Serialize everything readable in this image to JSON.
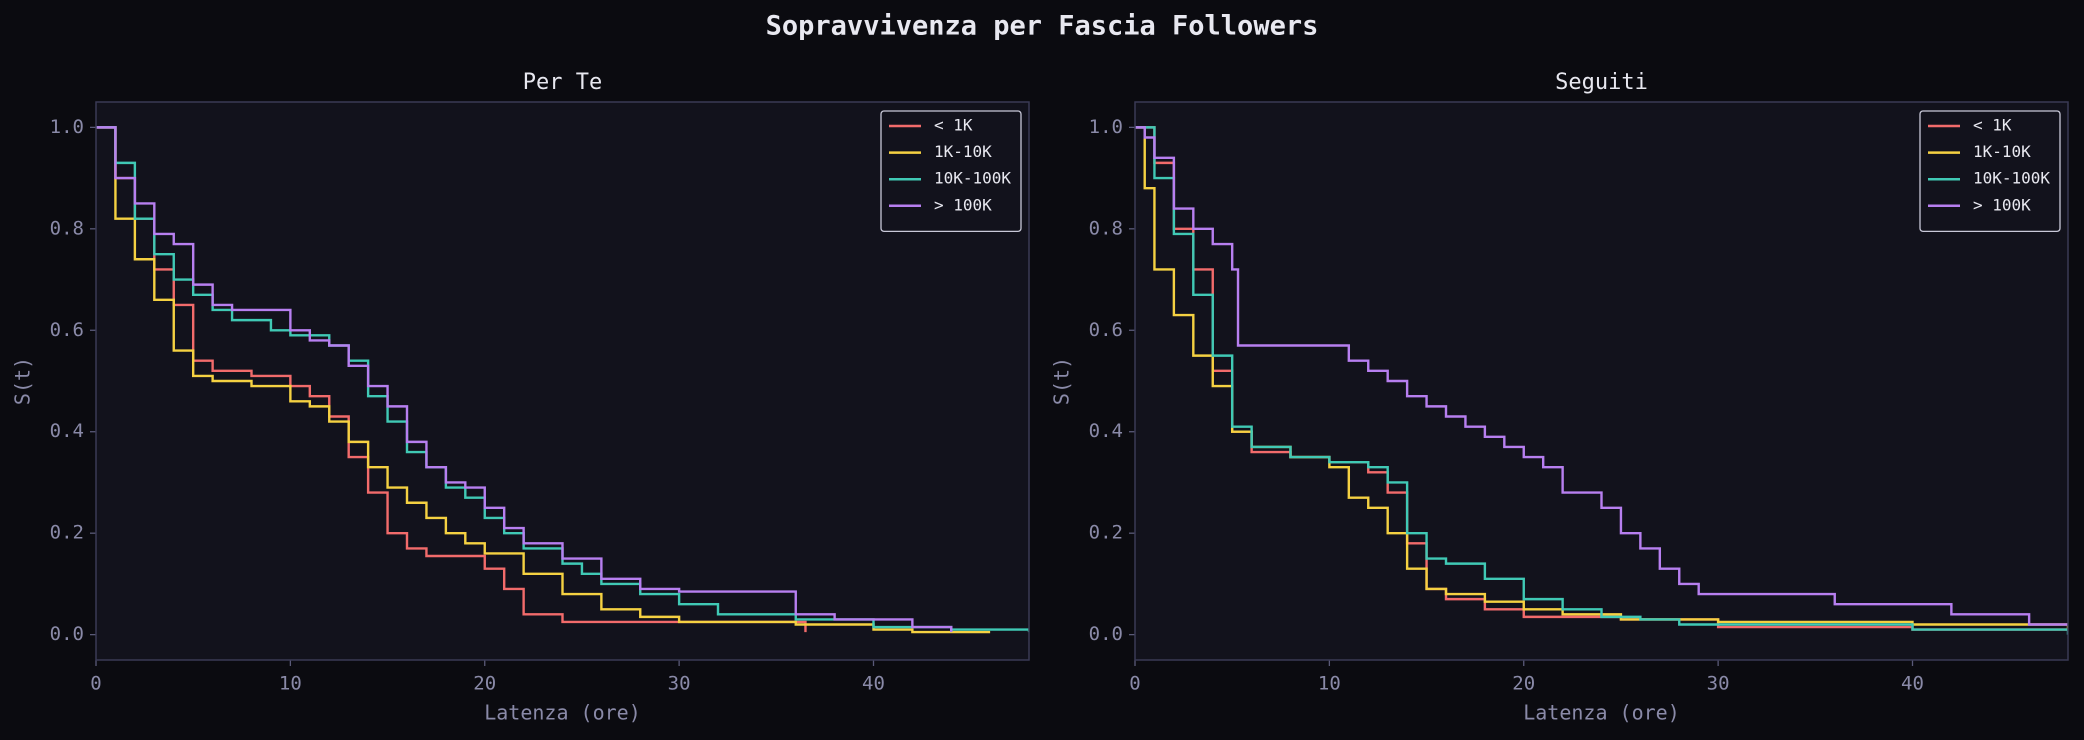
{
  "title": "Sopravvivenza per Fascia Followers",
  "chart_data": [
    {
      "type": "line",
      "drawstyle": "steps-post",
      "title": "Per Te",
      "xlabel": "Latenza (ore)",
      "ylabel": "S(t)",
      "xlim": [
        0,
        48
      ],
      "ylim": [
        -0.05,
        1.05
      ],
      "xticks": [
        0,
        10,
        20,
        30,
        40
      ],
      "yticks": [
        {
          "value": 0,
          "label": "0.0"
        },
        0.2,
        0.4,
        0.6,
        0.8,
        {
          "value": 1,
          "label": "1.0"
        }
      ],
      "legend": "upper right",
      "series": [
        {
          "name": "< 1K",
          "color": "#f26b6b",
          "x": [
            0,
            1,
            2,
            3,
            4,
            5,
            6,
            8,
            10,
            11,
            12,
            13,
            14,
            15,
            16,
            17,
            20,
            21,
            22,
            24,
            30,
            36.5
          ],
          "values": [
            1,
            0.9,
            0.82,
            0.72,
            0.65,
            0.54,
            0.52,
            0.51,
            0.49,
            0.47,
            0.43,
            0.35,
            0.28,
            0.2,
            0.17,
            0.155,
            0.13,
            0.09,
            0.04,
            0.025,
            0.025,
            0.005
          ]
        },
        {
          "name": "1K-10K",
          "color": "#f5d142",
          "x": [
            0,
            1,
            2,
            3,
            4,
            5,
            6,
            8,
            10,
            11,
            12,
            13,
            14,
            15,
            16,
            17,
            18,
            19,
            20,
            22,
            24,
            26,
            28,
            30,
            36,
            40,
            42,
            46
          ],
          "values": [
            1,
            0.82,
            0.74,
            0.66,
            0.56,
            0.51,
            0.5,
            0.49,
            0.46,
            0.45,
            0.42,
            0.38,
            0.33,
            0.29,
            0.26,
            0.23,
            0.2,
            0.18,
            0.16,
            0.12,
            0.08,
            0.05,
            0.035,
            0.025,
            0.02,
            0.01,
            0.005,
            0.005
          ]
        },
        {
          "name": "10K-100K",
          "color": "#40c9b5",
          "x": [
            0,
            1,
            2,
            3,
            4,
            5,
            6,
            7,
            9,
            10,
            12,
            13,
            14,
            15,
            16,
            17,
            18,
            19,
            20,
            21,
            22,
            24,
            25,
            26,
            28,
            30,
            32,
            36,
            40,
            44,
            48
          ],
          "values": [
            1,
            0.93,
            0.82,
            0.75,
            0.7,
            0.67,
            0.64,
            0.62,
            0.6,
            0.59,
            0.57,
            0.54,
            0.47,
            0.42,
            0.36,
            0.33,
            0.29,
            0.27,
            0.23,
            0.2,
            0.17,
            0.14,
            0.12,
            0.1,
            0.08,
            0.06,
            0.04,
            0.03,
            0.015,
            0.01,
            0.005
          ]
        },
        {
          "name": "> 100K",
          "color": "#b77ff0",
          "x": [
            0,
            1,
            2,
            3,
            4,
            5,
            6,
            7,
            8,
            10,
            11,
            12,
            13,
            14,
            15,
            16,
            17,
            18,
            19,
            20,
            21,
            22,
            24,
            26,
            28,
            30,
            36,
            38,
            42,
            44
          ],
          "values": [
            1,
            0.9,
            0.85,
            0.79,
            0.77,
            0.69,
            0.65,
            0.64,
            0.64,
            0.6,
            0.58,
            0.57,
            0.53,
            0.49,
            0.45,
            0.38,
            0.33,
            0.3,
            0.29,
            0.25,
            0.21,
            0.18,
            0.15,
            0.11,
            0.09,
            0.085,
            0.04,
            0.03,
            0.015,
            0.005
          ]
        }
      ]
    },
    {
      "type": "line",
      "drawstyle": "steps-post",
      "title": "Seguiti",
      "xlabel": "Latenza (ore)",
      "ylabel": "S(t)",
      "xlim": [
        0,
        48
      ],
      "ylim": [
        -0.05,
        1.05
      ],
      "xticks": [
        0,
        10,
        20,
        30,
        40
      ],
      "yticks": [
        {
          "value": 0,
          "label": "0.0"
        },
        0.2,
        0.4,
        0.6,
        0.8,
        {
          "value": 1,
          "label": "1.0"
        }
      ],
      "legend": "upper right",
      "series": [
        {
          "name": "< 1K",
          "color": "#f26b6b",
          "x": [
            0,
            1,
            2,
            3,
            4,
            5,
            6,
            8,
            10,
            12,
            13,
            14,
            15,
            16,
            18,
            20,
            25,
            30,
            40,
            48
          ],
          "values": [
            1,
            0.93,
            0.8,
            0.72,
            0.52,
            0.4,
            0.36,
            0.35,
            0.34,
            0.32,
            0.28,
            0.18,
            0.09,
            0.07,
            0.05,
            0.035,
            0.03,
            0.015,
            0.01,
            0.01
          ]
        },
        {
          "name": "1K-10K",
          "color": "#f5d142",
          "x": [
            0,
            0.5,
            1,
            2,
            3,
            4,
            5,
            6,
            8,
            10,
            11,
            12,
            13,
            14,
            15,
            16,
            18,
            20,
            22,
            25,
            30,
            40,
            48
          ],
          "values": [
            1,
            0.88,
            0.72,
            0.63,
            0.55,
            0.49,
            0.4,
            0.37,
            0.35,
            0.33,
            0.27,
            0.25,
            0.2,
            0.13,
            0.09,
            0.08,
            0.065,
            0.05,
            0.04,
            0.03,
            0.025,
            0.02,
            0.01
          ]
        },
        {
          "name": "10K-100K",
          "color": "#40c9b5",
          "x": [
            0,
            1,
            2,
            3,
            4,
            5,
            6,
            8,
            10,
            12,
            13,
            14,
            15,
            16,
            18,
            20,
            22,
            24,
            26,
            28,
            40,
            48
          ],
          "values": [
            1,
            0.9,
            0.79,
            0.67,
            0.55,
            0.41,
            0.37,
            0.35,
            0.34,
            0.33,
            0.3,
            0.2,
            0.15,
            0.14,
            0.11,
            0.07,
            0.05,
            0.035,
            0.03,
            0.02,
            0.01,
            0
          ]
        },
        {
          "name": "> 100K",
          "color": "#b77ff0",
          "x": [
            0,
            0.5,
            1,
            2,
            3,
            4,
            5,
            5.3,
            10,
            11,
            12,
            13,
            14,
            15,
            16,
            17,
            18,
            19,
            20,
            21,
            22,
            24,
            25,
            26,
            27,
            28,
            29,
            36,
            42,
            46,
            48
          ],
          "values": [
            1,
            0.98,
            0.94,
            0.84,
            0.8,
            0.77,
            0.72,
            0.57,
            0.57,
            0.54,
            0.52,
            0.5,
            0.47,
            0.45,
            0.43,
            0.41,
            0.39,
            0.37,
            0.35,
            0.33,
            0.28,
            0.25,
            0.2,
            0.17,
            0.13,
            0.1,
            0.08,
            0.06,
            0.04,
            0.02,
            0.02
          ]
        }
      ]
    }
  ]
}
